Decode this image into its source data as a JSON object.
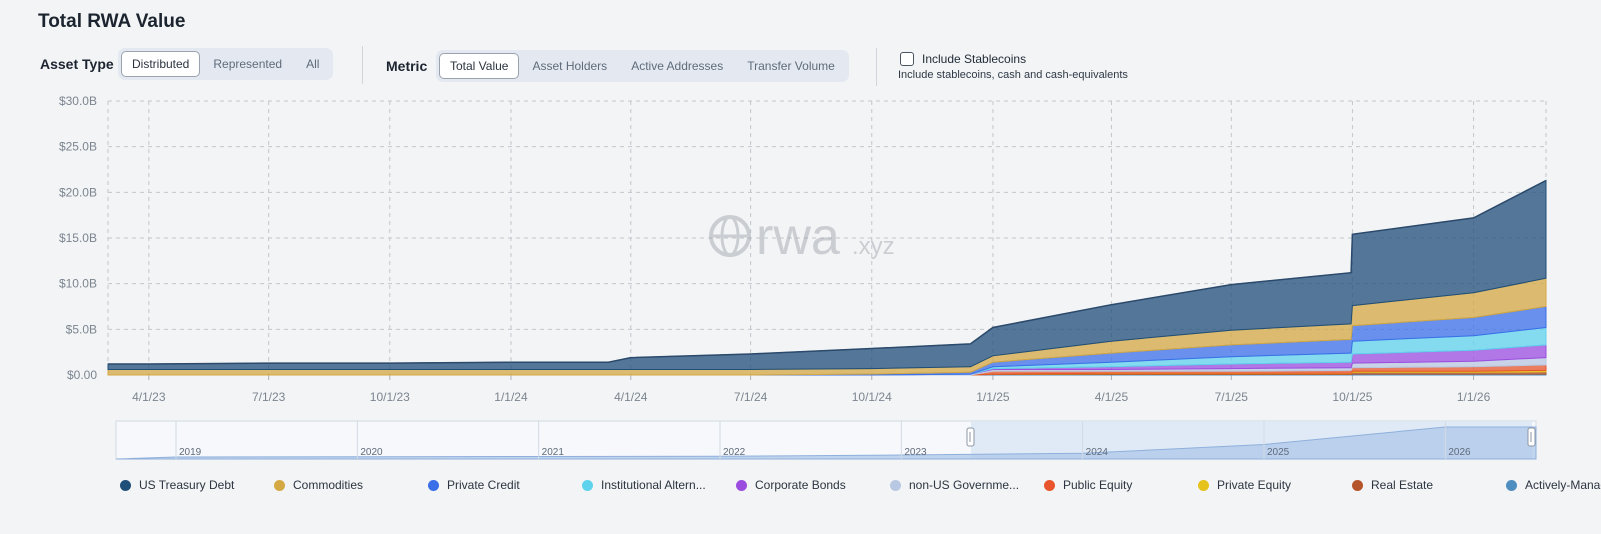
{
  "header": {
    "title": "Total RWA Value"
  },
  "controls": {
    "asset_type": {
      "label": "Asset Type",
      "options": [
        "Distributed",
        "Represented",
        "All"
      ],
      "selected": "Distributed"
    },
    "metric": {
      "label": "Metric",
      "options": [
        "Total Value",
        "Asset Holders",
        "Active Addresses",
        "Transfer Volume"
      ],
      "selected": "Total Value"
    },
    "stablecoins": {
      "label": "Include Stablecoins",
      "description": "Include stablecoins, cash and cash-equivalents",
      "checked": false
    }
  },
  "watermark": {
    "text": "rwa",
    "suffix": ".xyz"
  },
  "chart_data": {
    "type": "area",
    "stacked": true,
    "y_tick_labels": [
      "$0.00",
      "$5.0B",
      "$10.0B",
      "$15.0B",
      "$20.0B",
      "$25.0B",
      "$30.0B"
    ],
    "ylim": [
      0,
      30
    ],
    "y_unit": "$B",
    "x_tick_labels": [
      "4/1/23",
      "7/1/23",
      "10/1/23",
      "1/1/24",
      "4/1/24",
      "7/1/24",
      "10/1/24",
      "1/1/25",
      "4/1/25",
      "7/1/25",
      "10/1/25",
      "1/1/26"
    ],
    "x": [
      "2023-03-01",
      "2023-04-01",
      "2023-07-01",
      "2023-10-01",
      "2024-01-01",
      "2024-03-15",
      "2024-04-01",
      "2024-07-01",
      "2024-10-01",
      "2024-12-15",
      "2025-01-01",
      "2025-04-01",
      "2025-07-01",
      "2025-09-30",
      "2025-10-01",
      "2026-01-01",
      "2026-02-25"
    ],
    "grid": true,
    "legend_position": "bottom",
    "series": [
      {
        "name": "US Treasury Debt",
        "color": "#1f4e79",
        "values": [
          0.6,
          0.6,
          0.7,
          0.7,
          0.8,
          0.8,
          1.3,
          1.7,
          2.2,
          2.5,
          3.1,
          4.0,
          5.0,
          5.6,
          7.8,
          8.2,
          10.7
        ]
      },
      {
        "name": "Commodities",
        "color": "#d4a843",
        "values": [
          0.6,
          0.6,
          0.6,
          0.6,
          0.6,
          0.6,
          0.6,
          0.6,
          0.6,
          0.6,
          0.7,
          1.3,
          1.6,
          1.7,
          2.2,
          2.7,
          3.1
        ]
      },
      {
        "name": "Private Credit",
        "color": "#3b6fe8",
        "values": [
          0.0,
          0.0,
          0.0,
          0.0,
          0.0,
          0.0,
          0.0,
          0.0,
          0.1,
          0.2,
          0.5,
          1.0,
          1.3,
          1.5,
          1.7,
          2.0,
          2.3
        ]
      },
      {
        "name": "Institutional Altern...",
        "color": "#5fd3ec",
        "values": [
          0.0,
          0.0,
          0.0,
          0.0,
          0.0,
          0.0,
          0.0,
          0.0,
          0.0,
          0.0,
          0.2,
          0.5,
          0.8,
          1.0,
          1.4,
          1.6,
          1.9
        ]
      },
      {
        "name": "Corporate Bonds",
        "color": "#9b4de0",
        "values": [
          0.0,
          0.0,
          0.0,
          0.0,
          0.0,
          0.0,
          0.0,
          0.0,
          0.0,
          0.0,
          0.1,
          0.3,
          0.5,
          0.6,
          1.0,
          1.2,
          1.4
        ]
      },
      {
        "name": "non-US Governme...",
        "color": "#b9c8e2",
        "values": [
          0.0,
          0.0,
          0.0,
          0.0,
          0.0,
          0.0,
          0.0,
          0.0,
          0.0,
          0.1,
          0.2,
          0.2,
          0.3,
          0.3,
          0.5,
          0.6,
          0.8
        ]
      },
      {
        "name": "Public Equity",
        "color": "#e8552c",
        "values": [
          0.0,
          0.0,
          0.0,
          0.0,
          0.0,
          0.0,
          0.0,
          0.0,
          0.0,
          0.0,
          0.3,
          0.2,
          0.2,
          0.3,
          0.4,
          0.5,
          0.6
        ]
      },
      {
        "name": "Private Equity",
        "color": "#e5c21c",
        "values": [
          0.0,
          0.0,
          0.0,
          0.0,
          0.0,
          0.0,
          0.0,
          0.0,
          0.0,
          0.0,
          0.0,
          0.05,
          0.05,
          0.05,
          0.1,
          0.1,
          0.15
        ]
      },
      {
        "name": "Real Estate",
        "color": "#b5542a",
        "values": [
          0.0,
          0.0,
          0.0,
          0.0,
          0.0,
          0.0,
          0.0,
          0.0,
          0.0,
          0.0,
          0.05,
          0.1,
          0.1,
          0.1,
          0.2,
          0.2,
          0.25
        ]
      },
      {
        "name": "Actively-Managed...",
        "color": "#4f8fc0",
        "values": [
          0.0,
          0.0,
          0.0,
          0.0,
          0.0,
          0.0,
          0.0,
          0.0,
          0.0,
          0.0,
          0.05,
          0.05,
          0.05,
          0.05,
          0.1,
          0.1,
          0.1
        ]
      }
    ],
    "navigator": {
      "year_labels": [
        "2019",
        "2020",
        "2021",
        "2022",
        "2023",
        "2024",
        "2025",
        "2026"
      ],
      "x": [
        "2019",
        "2020",
        "2021",
        "2022",
        "2023",
        "2024",
        "2025",
        "2026"
      ],
      "total_values": [
        0.0,
        0.1,
        0.2,
        0.3,
        0.8,
        1.5,
        5.0,
        12.0
      ],
      "selection": [
        "2023-03-01",
        "2026-02-25"
      ]
    }
  }
}
